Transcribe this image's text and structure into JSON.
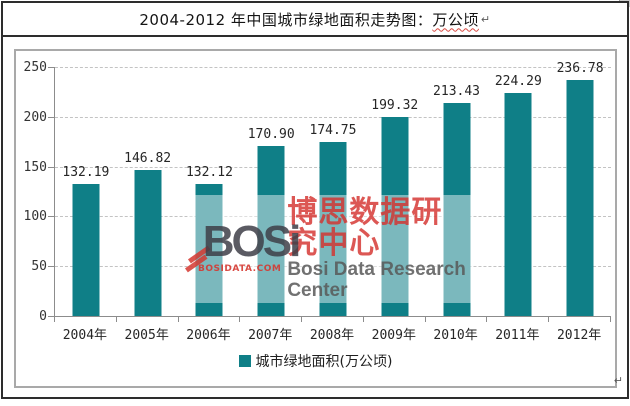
{
  "title": {
    "prefix": "2004-2012 年中国城市绿地面积走势图：",
    "highlight": "万公顷"
  },
  "marks": {
    "paragraph": "↵"
  },
  "chart_data": {
    "type": "bar",
    "title": "2004-2012 年中国城市绿地面积走势图：万公顷",
    "categories": [
      "2004年",
      "2005年",
      "2006年",
      "2007年",
      "2008年",
      "2009年",
      "2010年",
      "2011年",
      "2012年"
    ],
    "values": [
      132.19,
      146.82,
      132.12,
      170.9,
      174.75,
      199.32,
      213.43,
      224.29,
      236.78
    ],
    "value_labels": [
      "132.19",
      "146.82",
      "132.12",
      "170.90",
      "174.75",
      "199.32",
      "213.43",
      "224.29",
      "236.78"
    ],
    "ylim": [
      0,
      250
    ],
    "yticks": [
      0,
      50,
      100,
      150,
      200,
      250
    ],
    "xlabel": "",
    "ylabel": "",
    "grid": "horizontal-dashed",
    "legend": "城市绿地面积(万公顷)",
    "legend_position": "bottom",
    "bar_color": "#0f7f87"
  },
  "watermark": {
    "logo_text": "BOSi",
    "logo_sub": "BOSIDATA.COM",
    "cn": "博思数据研究中心",
    "en": "Bosi Data Research Center"
  },
  "colors": {
    "bar": "#0f7f87",
    "table_border": "#2d2d2d",
    "chart_border": "#a9a9a9",
    "gridline": "#c3c3c3",
    "axis": "#8c8c8c",
    "watermark_red": "#d4322e",
    "watermark_gray": "#585858"
  }
}
